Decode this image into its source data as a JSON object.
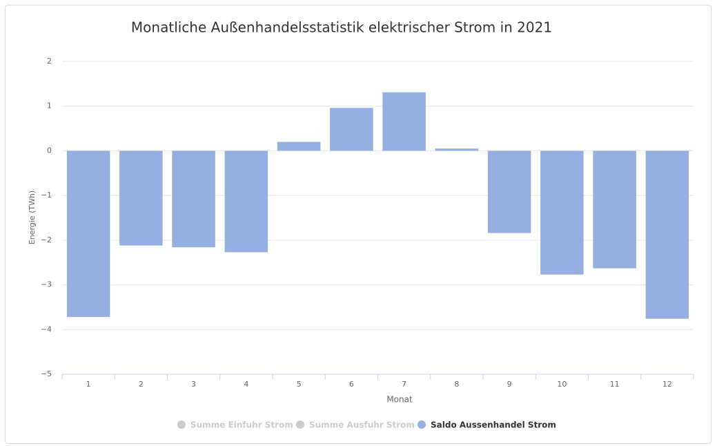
{
  "chart_data": {
    "type": "bar",
    "title": "Monatliche Außenhandelsstatistik elektrischer Strom in 2021",
    "x_label": "Monat",
    "y_label": "Energie (TWh)",
    "categories": [
      "1",
      "2",
      "3",
      "4",
      "5",
      "6",
      "7",
      "8",
      "9",
      "10",
      "11",
      "12"
    ],
    "series": [
      {
        "name": "Summe Einfuhr Strom",
        "color": "#cccccc",
        "visible": false
      },
      {
        "name": "Summe Ausfuhr Strom",
        "color": "#cccccc",
        "visible": false
      },
      {
        "name": "Saldo Aussenhandel Strom",
        "color": "#95b0e0",
        "visible": true,
        "values": [
          -3.72,
          -2.12,
          -2.16,
          -2.27,
          0.2,
          0.96,
          1.31,
          0.05,
          -1.84,
          -2.77,
          -2.63,
          -3.76
        ]
      }
    ],
    "ylim": [
      -5,
      2
    ],
    "yticks": [
      2,
      1,
      0,
      {
        "value": -1,
        "label": "−1"
      },
      {
        "value": -2,
        "label": "−2"
      },
      {
        "value": -3,
        "label": "−3"
      },
      {
        "value": -4,
        "label": "−4"
      },
      {
        "value": -5,
        "label": "−5"
      }
    ],
    "grid": true
  }
}
